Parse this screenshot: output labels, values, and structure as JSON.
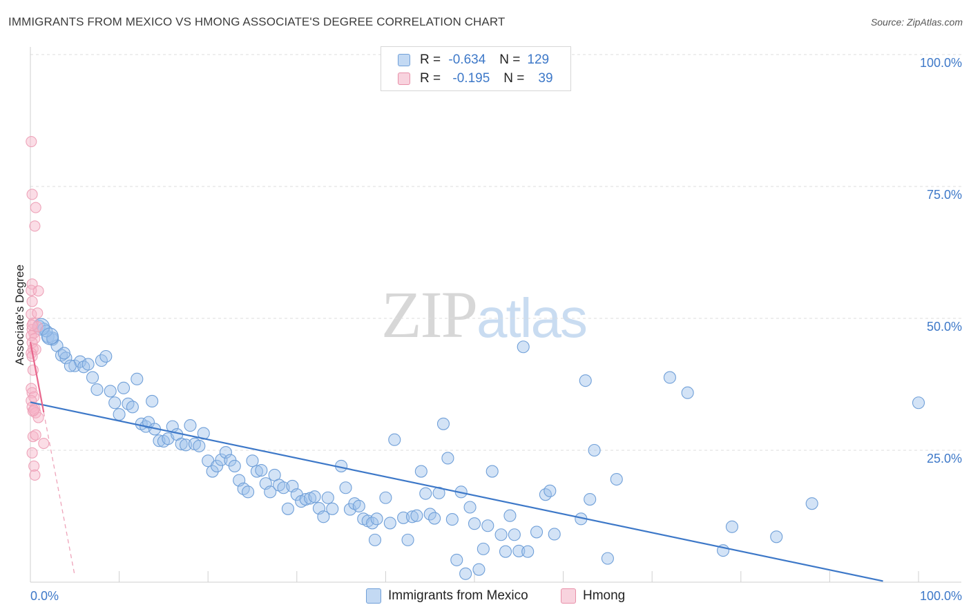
{
  "header": {
    "title": "IMMIGRANTS FROM MEXICO VS HMONG ASSOCIATE'S DEGREE CORRELATION CHART",
    "source": "Source: ZipAtlas.com"
  },
  "watermark": {
    "zip": "ZIP",
    "atlas": "atlas"
  },
  "legend": {
    "rows": [
      {
        "r_label": "R =",
        "r_value": "-0.634",
        "n_label": "N =",
        "n_value": "129",
        "color": "#a9c8ef",
        "border": "#6f9fd8"
      },
      {
        "r_label": "R =",
        "r_value": "-0.195",
        "n_label": "N =",
        "n_value": "39",
        "color": "#f6c1cf",
        "border": "#e88fa8"
      }
    ]
  },
  "bottom_legend": [
    {
      "label": "Immigrants from Mexico",
      "color": "#a9c8ef",
      "border": "#6f9fd8"
    },
    {
      "label": "Hmong",
      "color": "#f6c1cf",
      "border": "#e88fa8"
    }
  ],
  "colors": {
    "blue": "#3d78c8",
    "blue_fill": "rgba(158,194,236,0.45)",
    "pink": "#e8668c",
    "pink_fill": "rgba(246,180,200,0.45)",
    "grid": "#dddddd"
  },
  "chart_data": {
    "type": "scatter",
    "ylabel": "Associate's Degree",
    "xlabel": "",
    "xlim": [
      0,
      100
    ],
    "ylim": [
      0,
      100
    ],
    "x_tick_labels": [
      "0.0%",
      "100.0%"
    ],
    "y_tick_labels": [
      "25.0%",
      "50.0%",
      "75.0%",
      "100.0%"
    ],
    "y_ticks": [
      25,
      50,
      75,
      100
    ],
    "grid": true,
    "series": [
      {
        "name": "Immigrants from Mexico",
        "color": "#3d78c8",
        "trend": {
          "x": [
            0,
            96
          ],
          "y": [
            34.1,
            0.2
          ]
        },
        "points": [
          [
            1,
            48.5
          ],
          [
            1.5,
            48
          ],
          [
            2,
            46.5
          ],
          [
            2.5,
            46
          ],
          [
            3,
            44.8
          ],
          [
            3.5,
            43
          ],
          [
            4,
            42.5
          ],
          [
            5,
            41
          ],
          [
            5.6,
            41.8
          ],
          [
            6,
            40.8
          ],
          [
            7,
            38.8
          ],
          [
            7.5,
            36.5
          ],
          [
            8,
            42
          ],
          [
            8.5,
            42.8
          ],
          [
            9,
            36.2
          ],
          [
            9.5,
            34
          ],
          [
            10,
            31.8
          ],
          [
            10.5,
            36.8
          ],
          [
            11,
            33.8
          ],
          [
            11.5,
            33.2
          ],
          [
            12,
            38.5
          ],
          [
            12.5,
            30
          ],
          [
            13,
            29.5
          ],
          [
            13.3,
            30.3
          ],
          [
            13.7,
            34.3
          ],
          [
            14,
            29
          ],
          [
            14.5,
            26.8
          ],
          [
            15,
            26.7
          ],
          [
            15.5,
            27.2
          ],
          [
            16,
            29.5
          ],
          [
            16.5,
            28
          ],
          [
            17,
            26.2
          ],
          [
            17.5,
            26
          ],
          [
            18,
            29.7
          ],
          [
            18.5,
            26.2
          ],
          [
            19,
            25.8
          ],
          [
            19.5,
            28.2
          ],
          [
            20,
            23
          ],
          [
            20.5,
            21
          ],
          [
            21,
            22
          ],
          [
            21.5,
            23.2
          ],
          [
            22,
            24.6
          ],
          [
            22.5,
            23.1
          ],
          [
            23,
            22
          ],
          [
            23.5,
            19.3
          ],
          [
            24,
            17.7
          ],
          [
            24.5,
            17.1
          ],
          [
            25,
            23
          ],
          [
            25.5,
            21
          ],
          [
            26,
            21.2
          ],
          [
            26.5,
            18.7
          ],
          [
            27,
            17.1
          ],
          [
            27.5,
            20.3
          ],
          [
            28,
            18.4
          ],
          [
            28.5,
            17.9
          ],
          [
            29,
            13.9
          ],
          [
            29.5,
            18.2
          ],
          [
            30,
            16.6
          ],
          [
            30.5,
            15.3
          ],
          [
            31,
            15.7
          ],
          [
            31.5,
            15.9
          ],
          [
            32,
            16.2
          ],
          [
            32.5,
            14
          ],
          [
            33,
            12.4
          ],
          [
            33.5,
            16
          ],
          [
            34,
            13.9
          ],
          [
            35,
            22
          ],
          [
            35.5,
            17.9
          ],
          [
            36,
            13.8
          ],
          [
            36.5,
            14.9
          ],
          [
            37,
            14.4
          ],
          [
            37.5,
            12
          ],
          [
            38,
            11.6
          ],
          [
            38.5,
            11.2
          ],
          [
            38.8,
            8
          ],
          [
            39,
            12
          ],
          [
            40,
            16
          ],
          [
            40.5,
            11.2
          ],
          [
            41,
            27
          ],
          [
            42,
            12.2
          ],
          [
            42.5,
            8
          ],
          [
            43,
            12.4
          ],
          [
            43.5,
            12.6
          ],
          [
            44,
            21
          ],
          [
            44.5,
            16.8
          ],
          [
            45,
            12.9
          ],
          [
            45.5,
            12.1
          ],
          [
            46,
            16.9
          ],
          [
            46.5,
            30
          ],
          [
            47,
            23.5
          ],
          [
            47.5,
            11.9
          ],
          [
            48,
            4.2
          ],
          [
            48.5,
            17.1
          ],
          [
            49,
            1.6
          ],
          [
            49.5,
            14.2
          ],
          [
            50,
            11.1
          ],
          [
            50.5,
            2.4
          ],
          [
            51,
            6.3
          ],
          [
            51.5,
            10.7
          ],
          [
            52,
            21
          ],
          [
            53,
            9
          ],
          [
            53.5,
            5.8
          ],
          [
            54,
            12.6
          ],
          [
            54.5,
            9
          ],
          [
            55,
            5.9
          ],
          [
            55.5,
            44.6
          ],
          [
            56,
            5.8
          ],
          [
            57,
            9.5
          ],
          [
            58,
            16.6
          ],
          [
            58.5,
            17.3
          ],
          [
            59,
            9.1
          ],
          [
            62,
            12
          ],
          [
            62.5,
            38.2
          ],
          [
            63,
            15.7
          ],
          [
            63.5,
            25
          ],
          [
            65,
            4.5
          ],
          [
            66,
            19.5
          ],
          [
            72,
            38.8
          ],
          [
            74,
            35.9
          ],
          [
            78,
            6
          ],
          [
            79,
            10.5
          ],
          [
            84,
            8.6
          ],
          [
            88,
            14.9
          ],
          [
            100,
            34
          ],
          [
            2.5,
            46.3
          ],
          [
            1.8,
            47.6
          ],
          [
            3.8,
            43.4
          ],
          [
            6.5,
            41.3
          ],
          [
            4.5,
            41
          ]
        ],
        "large_points": [
          [
            1.2,
            48.4
          ],
          [
            2.2,
            46.6
          ]
        ]
      },
      {
        "name": "Hmong",
        "color": "#e8668c",
        "trend": {
          "x": [
            0,
            1.5
          ],
          "y": [
            45.5,
            32.2
          ]
        },
        "trend_dashed": {
          "x": [
            1.5,
            5
          ],
          "y": [
            32.2,
            1.2
          ]
        },
        "points": [
          [
            0.1,
            83.5
          ],
          [
            0.2,
            73.5
          ],
          [
            0.6,
            71
          ],
          [
            0.5,
            67.5
          ],
          [
            0.2,
            56.5
          ],
          [
            0.1,
            55.3
          ],
          [
            0.9,
            55.2
          ],
          [
            0.2,
            53.2
          ],
          [
            0.1,
            50.8
          ],
          [
            0.8,
            51
          ],
          [
            0.3,
            49.1
          ],
          [
            0.2,
            47.9
          ],
          [
            0.4,
            47.2
          ],
          [
            0.1,
            46.7
          ],
          [
            0.5,
            46.2
          ],
          [
            0.2,
            45.4
          ],
          [
            0.3,
            44.2
          ],
          [
            0.6,
            44.1
          ],
          [
            0.1,
            43.4
          ],
          [
            0.2,
            42.8
          ],
          [
            0.3,
            40.2
          ],
          [
            0.1,
            36.7
          ],
          [
            0.2,
            35.9
          ],
          [
            0.4,
            35.1
          ],
          [
            0.1,
            34.4
          ],
          [
            0.2,
            33.2
          ],
          [
            0.5,
            32.9
          ],
          [
            0.3,
            32.4
          ],
          [
            0.6,
            32.1
          ],
          [
            0.9,
            31.2
          ],
          [
            0.3,
            27.6
          ],
          [
            0.6,
            27.9
          ],
          [
            1.5,
            26.3
          ],
          [
            0.2,
            24.5
          ],
          [
            0.4,
            22
          ],
          [
            0.5,
            20.3
          ],
          [
            0.8,
            48.4
          ],
          [
            0.2,
            48.7
          ],
          [
            0.4,
            32.6
          ]
        ]
      }
    ]
  }
}
